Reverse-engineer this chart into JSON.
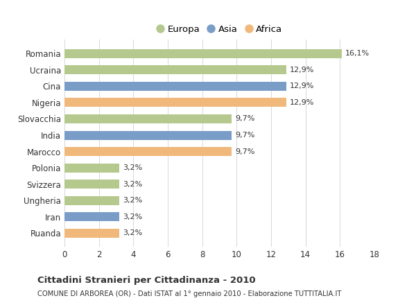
{
  "categories": [
    "Romania",
    "Ucraina",
    "Cina",
    "Nigeria",
    "Slovacchia",
    "India",
    "Marocco",
    "Polonia",
    "Svizzera",
    "Ungheria",
    "Iran",
    "Ruanda"
  ],
  "values": [
    16.1,
    12.9,
    12.9,
    12.9,
    9.7,
    9.7,
    9.7,
    3.2,
    3.2,
    3.2,
    3.2,
    3.2
  ],
  "labels": [
    "16,1%",
    "12,9%",
    "12,9%",
    "12,9%",
    "9,7%",
    "9,7%",
    "9,7%",
    "3,2%",
    "3,2%",
    "3,2%",
    "3,2%",
    "3,2%"
  ],
  "continents": [
    "Europa",
    "Europa",
    "Asia",
    "Africa",
    "Europa",
    "Asia",
    "Africa",
    "Europa",
    "Europa",
    "Europa",
    "Asia",
    "Africa"
  ],
  "colors": {
    "Europa": "#b5c98e",
    "Asia": "#7a9dc8",
    "Africa": "#f0b87a"
  },
  "xlim": [
    0,
    18
  ],
  "xticks": [
    0,
    2,
    4,
    6,
    8,
    10,
    12,
    14,
    16,
    18
  ],
  "title": "Cittadini Stranieri per Cittadinanza - 2010",
  "subtitle": "COMUNE DI ARBOREA (OR) - Dati ISTAT al 1° gennaio 2010 - Elaborazione TUTTITALIA.IT",
  "bg_color": "#ffffff",
  "grid_color": "#d8d8d8",
  "text_color": "#333333"
}
